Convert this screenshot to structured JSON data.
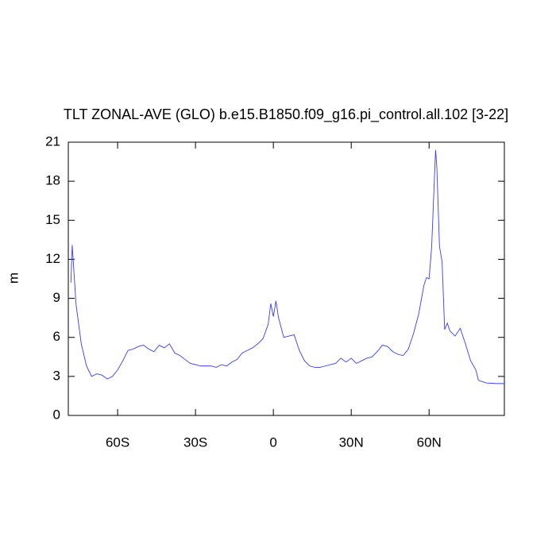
{
  "chart_data": {
    "type": "line",
    "title": "TLT ZONAL-AVE (GLO) b.e15.B1850.f09_g16.pi_control.all.102 [3-22]",
    "ylabel": "m",
    "x": [
      -78,
      -77.5,
      -76,
      -74,
      -72,
      -70,
      -68,
      -66,
      -64,
      -62,
      -60,
      -58,
      -56,
      -54,
      -52,
      -50,
      -48,
      -46,
      -44,
      -42,
      -40,
      -38,
      -36,
      -34,
      -32,
      -30,
      -28,
      -26,
      -24,
      -22,
      -20,
      -18,
      -16,
      -14,
      -12,
      -10,
      -8,
      -6,
      -4,
      -2,
      -1,
      0,
      1,
      2,
      4,
      6,
      8,
      10,
      12,
      14,
      16,
      18,
      20,
      22,
      24,
      26,
      28,
      30,
      32,
      34,
      36,
      38,
      40,
      42,
      44,
      46,
      48,
      50,
      52,
      54,
      56,
      58,
      59,
      60,
      61,
      62,
      62.5,
      63,
      64,
      65,
      66,
      67,
      68,
      70,
      72,
      74,
      76,
      78,
      79,
      82,
      86,
      89
    ],
    "series": [
      {
        "color": "#3a3aff",
        "values": [
          10.2,
          13.1,
          8.5,
          5.5,
          3.8,
          3.0,
          3.2,
          3.1,
          2.8,
          3.0,
          3.5,
          4.2,
          5.0,
          5.1,
          5.3,
          5.4,
          5.1,
          4.9,
          5.4,
          5.2,
          5.5,
          4.8,
          4.6,
          4.3,
          4.0,
          3.9,
          3.8,
          3.8,
          3.8,
          3.7,
          3.9,
          3.8,
          4.1,
          4.3,
          4.8,
          5.0,
          5.2,
          5.5,
          5.9,
          7.0,
          8.6,
          7.6,
          8.8,
          7.5,
          6.0,
          6.1,
          6.2,
          5.0,
          4.2,
          3.8,
          3.7,
          3.7,
          3.8,
          3.9,
          4.0,
          4.4,
          4.1,
          4.4,
          4.0,
          4.2,
          4.4,
          4.5,
          4.9,
          5.4,
          5.3,
          4.9,
          4.7,
          4.6,
          5.1,
          6.3,
          7.8,
          10.0,
          10.6,
          10.5,
          13,
          18,
          20.4,
          19,
          13,
          11.8,
          6.6,
          7.1,
          6.5,
          6.1,
          6.7,
          5.5,
          4.2,
          3.5,
          2.7,
          2.5,
          2.45,
          2.45
        ]
      }
    ],
    "xlim": [
      -79,
      89
    ],
    "xticks": [
      {
        "value": -60,
        "label": "60S"
      },
      {
        "value": -30,
        "label": "30S"
      },
      0,
      {
        "value": 30,
        "label": "30N"
      },
      {
        "value": 60,
        "label": "60N"
      }
    ],
    "ylim": [
      0,
      21
    ],
    "yticks": [
      0,
      3,
      6,
      9,
      12,
      15,
      18,
      21
    ]
  }
}
